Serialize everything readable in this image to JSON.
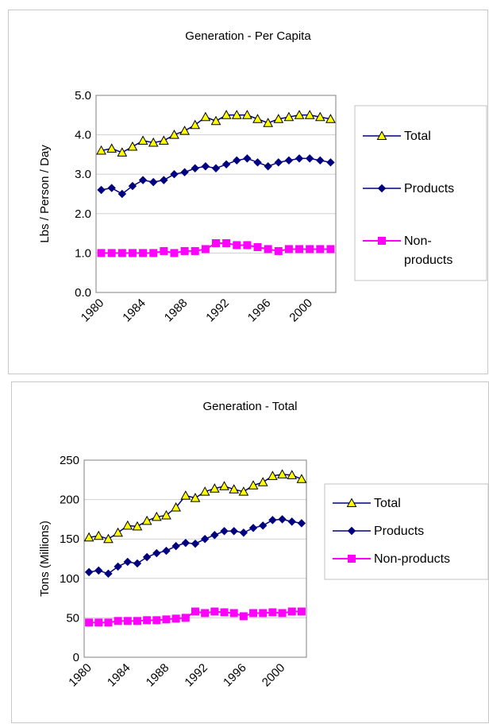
{
  "chart_data": [
    {
      "type": "line",
      "title": "Generation - Per Capita",
      "xlabel": "",
      "ylabel": "Lbs / Person / Day",
      "ylim": [
        0,
        5
      ],
      "yticks": [
        "0.0",
        "1.0",
        "2.0",
        "3.0",
        "4.0",
        "5.0"
      ],
      "xticks": [
        "1980",
        "1984",
        "1988",
        "1992",
        "1996",
        "2000"
      ],
      "grid": true,
      "legend_position": "right",
      "x": [
        1980,
        1981,
        1982,
        1983,
        1984,
        1985,
        1986,
        1987,
        1988,
        1989,
        1990,
        1991,
        1992,
        1993,
        1994,
        1995,
        1996,
        1997,
        1998,
        1999,
        2000,
        2001,
        2002
      ],
      "series": [
        {
          "name": "Total",
          "marker": "triangle",
          "color": "#000080",
          "marker_color": "#ffff00",
          "values": [
            3.6,
            3.65,
            3.55,
            3.7,
            3.85,
            3.8,
            3.85,
            4.0,
            4.1,
            4.25,
            4.45,
            4.35,
            4.5,
            4.5,
            4.5,
            4.4,
            4.3,
            4.4,
            4.45,
            4.5,
            4.5,
            4.45,
            4.4
          ]
        },
        {
          "name": "Products",
          "marker": "diamond",
          "color": "#000080",
          "marker_color": "#000080",
          "values": [
            2.6,
            2.65,
            2.5,
            2.7,
            2.85,
            2.8,
            2.85,
            3.0,
            3.05,
            3.15,
            3.2,
            3.15,
            3.25,
            3.35,
            3.4,
            3.3,
            3.2,
            3.3,
            3.35,
            3.4,
            3.4,
            3.35,
            3.3
          ]
        },
        {
          "name": "Non-products",
          "marker": "square",
          "color": "#ff00ff",
          "marker_color": "#ff00ff",
          "values": [
            1.0,
            1.0,
            1.0,
            1.0,
            1.0,
            1.0,
            1.05,
            1.0,
            1.05,
            1.05,
            1.1,
            1.25,
            1.25,
            1.2,
            1.2,
            1.15,
            1.1,
            1.05,
            1.1,
            1.1,
            1.1,
            1.1,
            1.1
          ]
        }
      ]
    },
    {
      "type": "line",
      "title": "Generation - Total",
      "xlabel": "",
      "ylabel": "Tons (Millions)",
      "ylim": [
        0,
        250
      ],
      "yticks": [
        "0",
        "50",
        "100",
        "150",
        "200",
        "250"
      ],
      "xticks": [
        "1980",
        "1984",
        "1988",
        "1992",
        "1996",
        "2000"
      ],
      "grid": true,
      "legend_position": "right",
      "x": [
        1980,
        1981,
        1982,
        1983,
        1984,
        1985,
        1986,
        1987,
        1988,
        1989,
        1990,
        1991,
        1992,
        1993,
        1994,
        1995,
        1996,
        1997,
        1998,
        1999,
        2000,
        2001,
        2002
      ],
      "series": [
        {
          "name": "Total",
          "marker": "triangle",
          "color": "#000080",
          "marker_color": "#ffff00",
          "values": [
            152,
            154,
            150,
            158,
            167,
            166,
            173,
            178,
            180,
            190,
            205,
            202,
            210,
            214,
            217,
            213,
            210,
            218,
            222,
            230,
            232,
            231,
            226
          ]
        },
        {
          "name": "Products",
          "marker": "diamond",
          "color": "#000080",
          "marker_color": "#000080",
          "values": [
            108,
            110,
            106,
            115,
            121,
            119,
            127,
            132,
            135,
            141,
            145,
            144,
            150,
            155,
            160,
            160,
            158,
            164,
            167,
            174,
            175,
            172,
            170
          ]
        },
        {
          "name": "Non-products",
          "marker": "square",
          "color": "#ff00ff",
          "marker_color": "#ff00ff",
          "values": [
            44,
            44,
            44,
            46,
            46,
            46,
            47,
            47,
            48,
            49,
            50,
            58,
            56,
            58,
            57,
            56,
            52,
            56,
            56,
            57,
            56,
            58,
            58
          ]
        }
      ]
    }
  ]
}
